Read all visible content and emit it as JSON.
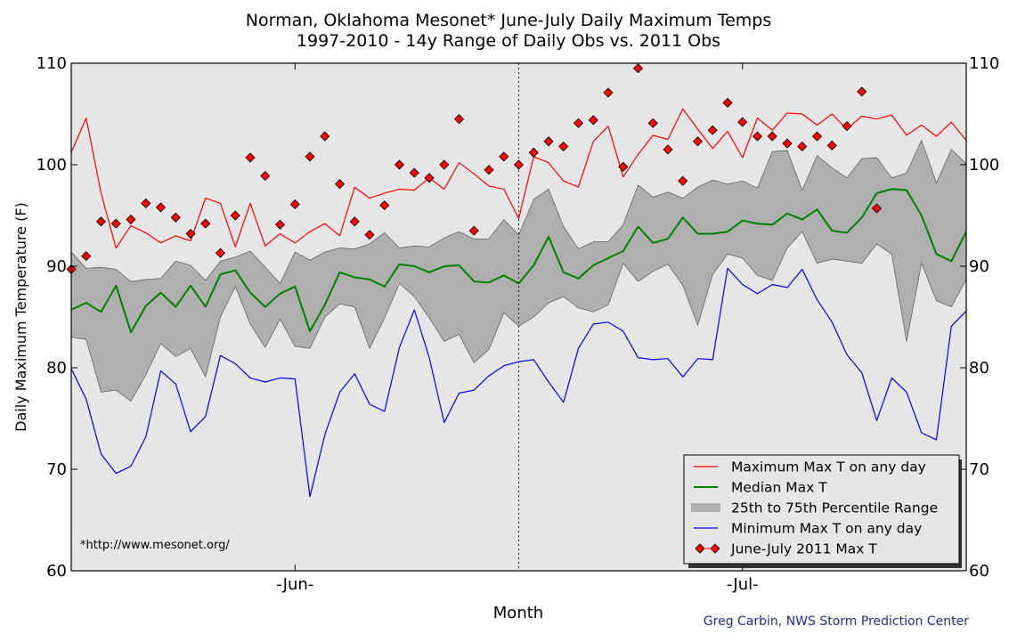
{
  "chart_data": {
    "type": "line",
    "title": "Norman, Oklahoma Mesonet* June-July Daily Maximum Temps",
    "subtitle": "1997-2010 - 14y Range of Daily Obs vs. 2011 Obs",
    "xlabel": "Month",
    "ylabel": "Daily Maximum Temperature (F)",
    "ylim": [
      60,
      110
    ],
    "yticks": [
      60,
      70,
      80,
      90,
      100,
      110
    ],
    "xlim": [
      0,
      60
    ],
    "month_ticks": [
      {
        "x": 15,
        "label": "-Jun-"
      },
      {
        "x": 45,
        "label": "-Jul-"
      }
    ],
    "month_divider_x": 30,
    "grid": false,
    "legend_position": "lower-right",
    "note": "*http://www.mesonet.org/",
    "credit": "Greg Carbin, NWS Storm Prediction Center",
    "colors": {
      "background": "#e6e6e6",
      "band": "#afafaf",
      "max": "#ff0000",
      "median": "#008000",
      "min": "#0000ff",
      "obs": "#ff0000"
    },
    "series": [
      {
        "name": "Maximum Max T on any day",
        "style": "line",
        "color": "#ff0000",
        "values": [
          101.2,
          104.6,
          97.2,
          91.8,
          94.0,
          93.3,
          92.3,
          93.0,
          92.5,
          96.7,
          96.2,
          91.9,
          96.2,
          92.0,
          93.2,
          92.3,
          93.4,
          94.2,
          93.0,
          97.8,
          96.7,
          97.2,
          97.6,
          97.5,
          98.7,
          97.6,
          100.2,
          99.1,
          97.9,
          97.6,
          94.7,
          100.8,
          100.2,
          98.4,
          97.8,
          102.3,
          103.8,
          98.8,
          101.0,
          102.9,
          102.5,
          105.5,
          103.5,
          101.6,
          103.3,
          100.7,
          104.6,
          103.4,
          105.1,
          105.0,
          103.9,
          105.0,
          103.5,
          104.8,
          104.5,
          104.9,
          102.9,
          103.9,
          102.8,
          104.2,
          102.4
        ]
      },
      {
        "name": "Median Max T",
        "style": "line",
        "color": "#008000",
        "values": [
          85.7,
          86.4,
          85.5,
          88.1,
          83.5,
          86.1,
          87.4,
          86.0,
          88.1,
          86.0,
          89.2,
          89.6,
          87.4,
          86.0,
          87.3,
          88.0,
          83.6,
          86.2,
          89.4,
          88.9,
          88.7,
          88.0,
          90.2,
          90.0,
          89.4,
          90.0,
          90.1,
          88.5,
          88.4,
          89.1,
          88.3,
          90.1,
          92.9,
          89.4,
          88.8,
          90.1,
          90.8,
          91.5,
          93.9,
          92.3,
          92.7,
          94.8,
          93.2,
          93.2,
          93.4,
          94.5,
          94.2,
          94.1,
          95.2,
          94.6,
          95.6,
          93.5,
          93.3,
          94.8,
          97.2,
          97.6,
          97.5,
          95.0,
          91.2,
          90.5,
          93.4
        ]
      },
      {
        "name": "25th to 75th Percentile Range",
        "style": "band",
        "color": "#afafaf",
        "lower": [
          83.0,
          82.8,
          77.6,
          77.8,
          76.7,
          79.3,
          82.4,
          81.1,
          81.9,
          79.1,
          85.0,
          88.0,
          84.3,
          82.0,
          84.8,
          82.1,
          81.9,
          85.0,
          86.3,
          86.0,
          81.9,
          84.9,
          88.3,
          87.0,
          84.9,
          82.6,
          83.3,
          80.5,
          81.8,
          85.4,
          84.1,
          85.0,
          86.4,
          87.0,
          85.9,
          85.5,
          86.2,
          90.3,
          88.5,
          89.5,
          90.2,
          88.1,
          84.2,
          89.2,
          91.2,
          90.8,
          89.1,
          88.6,
          91.8,
          93.4,
          90.3,
          90.7,
          90.5,
          90.3,
          92.2,
          91.2,
          82.6,
          90.3,
          86.6,
          86.0,
          88.7
        ],
        "upper": [
          91.4,
          89.8,
          89.9,
          89.7,
          88.5,
          88.7,
          88.8,
          90.5,
          90.1,
          88.6,
          90.5,
          90.9,
          91.5,
          89.9,
          88.3,
          91.4,
          90.6,
          91.4,
          91.8,
          91.7,
          92.2,
          93.3,
          91.8,
          92.0,
          91.9,
          92.8,
          93.4,
          92.7,
          92.7,
          94.6,
          93.1,
          96.6,
          97.6,
          93.9,
          91.7,
          92.4,
          92.4,
          94.1,
          98.0,
          96.8,
          97.3,
          96.7,
          97.8,
          98.5,
          98.1,
          98.4,
          97.7,
          101.3,
          101.4,
          97.5,
          100.9,
          99.7,
          98.7,
          100.6,
          100.7,
          98.7,
          99.2,
          102.4,
          98.2,
          101.5,
          100.1
        ]
      },
      {
        "name": "Minimum Max T on any day",
        "style": "line",
        "color": "#0000ff",
        "values": [
          79.9,
          76.9,
          71.5,
          69.6,
          70.3,
          73.2,
          79.7,
          78.4,
          73.7,
          75.2,
          81.2,
          80.4,
          79.0,
          78.6,
          79.0,
          78.9,
          67.3,
          73.4,
          77.6,
          79.4,
          76.4,
          75.7,
          82.0,
          85.7,
          81.0,
          74.6,
          77.5,
          77.8,
          79.2,
          80.2,
          80.6,
          80.8,
          78.6,
          76.6,
          81.9,
          84.3,
          84.5,
          83.6,
          81.0,
          80.8,
          80.9,
          79.1,
          80.9,
          80.8,
          89.8,
          88.2,
          87.3,
          88.2,
          87.9,
          89.7,
          86.7,
          84.5,
          81.3,
          79.5,
          74.8,
          79.0,
          77.6,
          73.6,
          72.9,
          84.1,
          85.6
        ]
      },
      {
        "name": "June-July 2011 Max T",
        "style": "markers",
        "color": "#ff0000",
        "values": [
          89.7,
          91.0,
          94.4,
          94.2,
          94.6,
          96.2,
          95.8,
          94.8,
          93.2,
          94.2,
          91.3,
          95.0,
          100.7,
          98.9,
          94.1,
          96.1,
          100.8,
          102.8,
          98.1,
          94.4,
          93.1,
          96.0,
          100.0,
          99.2,
          98.7,
          100.0,
          104.5,
          93.5,
          99.5,
          100.8,
          100.0,
          101.2,
          102.3,
          101.8,
          104.1,
          104.4,
          107.1,
          99.8,
          109.5,
          104.1,
          101.5,
          98.4,
          102.3,
          103.4,
          106.1,
          104.2,
          102.8,
          102.8,
          102.1,
          101.8,
          102.8,
          101.9,
          103.8,
          107.2,
          95.7
        ]
      }
    ]
  }
}
